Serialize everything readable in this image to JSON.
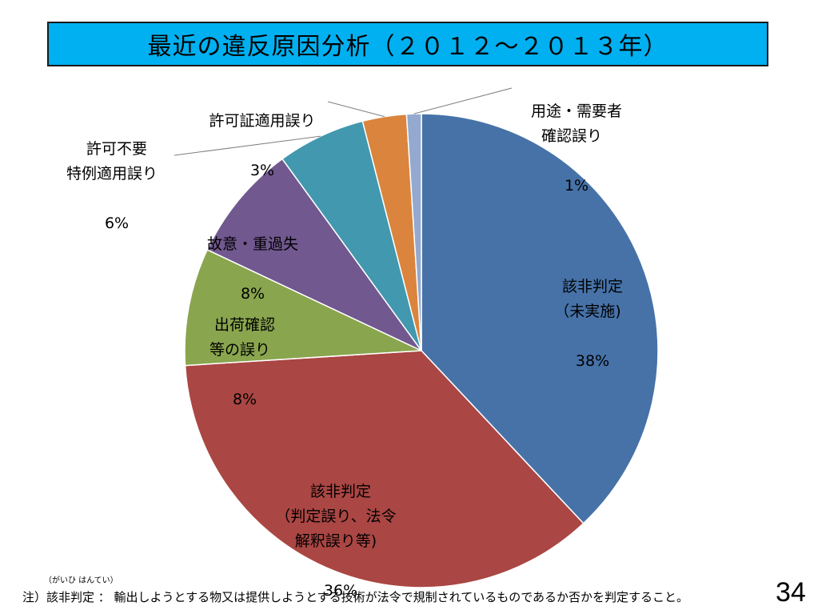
{
  "title": "最近の違反原因分析（２０１２～２０１３年）",
  "chart_data": {
    "type": "pie",
    "title": "最近の違反原因分析（２０１２～２０１３年）",
    "start_angle_deg": 0,
    "direction": "clockwise",
    "slices": [
      {
        "label": "該非判定\n（未実施)",
        "value": 38,
        "value_label": "38%",
        "color": "#4672a8"
      },
      {
        "label": "該非判定\n（判定誤り、法令\n解釈誤り等)",
        "value": 36,
        "value_label": "36%",
        "color": "#aa4643"
      },
      {
        "label": "出荷確認\n等の誤り",
        "value": 8,
        "value_label": "8%",
        "color": "#89a54e"
      },
      {
        "label": "故意・重過失",
        "value": 8,
        "value_label": "8%",
        "color": "#71588f"
      },
      {
        "label": "許可不要\n特例適用誤り",
        "value": 6,
        "value_label": "6%",
        "color": "#4198af"
      },
      {
        "label": "許可証適用誤り",
        "value": 3,
        "value_label": "3%",
        "color": "#db843d"
      },
      {
        "label": "用途・需要者\n確認誤り",
        "value": 1,
        "value_label": "1%",
        "color": "#93a9cf"
      }
    ]
  },
  "footnote": {
    "furigana": "（がいひ  はんてい）",
    "text": "注）該非判定 ： 輸出しようとする物又は提供しようとする技術が法令で規制されているものであるか否かを判定すること。"
  },
  "page_number": "34"
}
